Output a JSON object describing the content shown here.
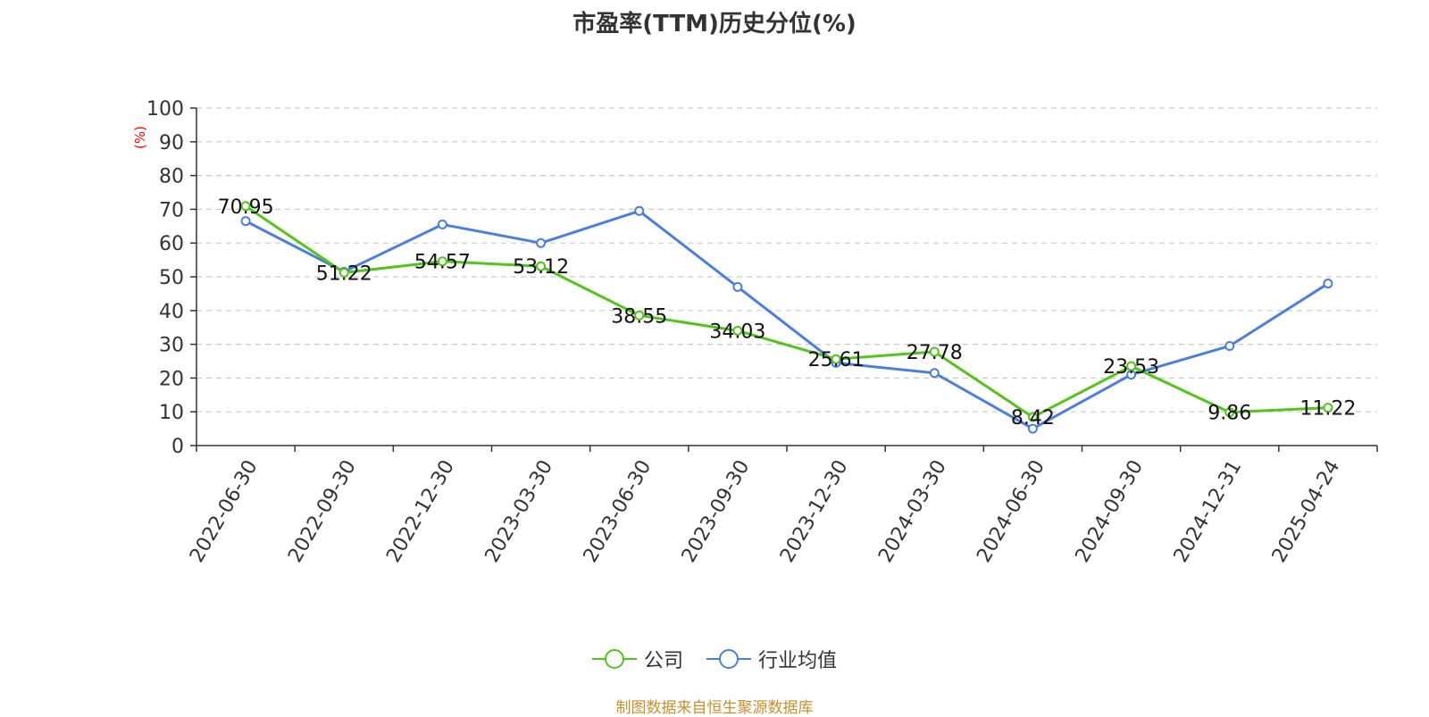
{
  "chart_data": {
    "type": "line",
    "title": "市盈率(TTM)历史分位(%)",
    "ylabel": "(%)",
    "xlabel": "",
    "ylim": [
      0,
      100
    ],
    "yticks": [
      0,
      10,
      20,
      30,
      40,
      50,
      60,
      70,
      80,
      90,
      100
    ],
    "categories": [
      "2022-06-30",
      "2022-09-30",
      "2022-12-30",
      "2023-03-30",
      "2023-06-30",
      "2023-09-30",
      "2023-12-30",
      "2024-03-30",
      "2024-06-30",
      "2024-09-30",
      "2024-12-31",
      "2025-04-24"
    ],
    "series": [
      {
        "name": "公司",
        "color": "#52c41a",
        "values": [
          70.95,
          51.22,
          54.57,
          53.12,
          38.55,
          34.03,
          25.61,
          27.78,
          8.42,
          23.53,
          9.86,
          11.22
        ],
        "labels": [
          "70.95",
          "51.22",
          "54.57",
          "53.12",
          "38.55",
          "34.03",
          "25.61",
          "27.78",
          "8.42",
          "23.53",
          "9.86",
          "11.22"
        ]
      },
      {
        "name": "行业均值",
        "color": "#4a7fdf",
        "values": [
          66.5,
          51.5,
          65.5,
          60.0,
          69.5,
          47.0,
          24.5,
          21.5,
          5.0,
          21.0,
          29.5,
          48.0
        ]
      }
    ],
    "grid": true,
    "legend_position": "bottom-center"
  },
  "source": "制图数据来自恒生聚源数据库"
}
